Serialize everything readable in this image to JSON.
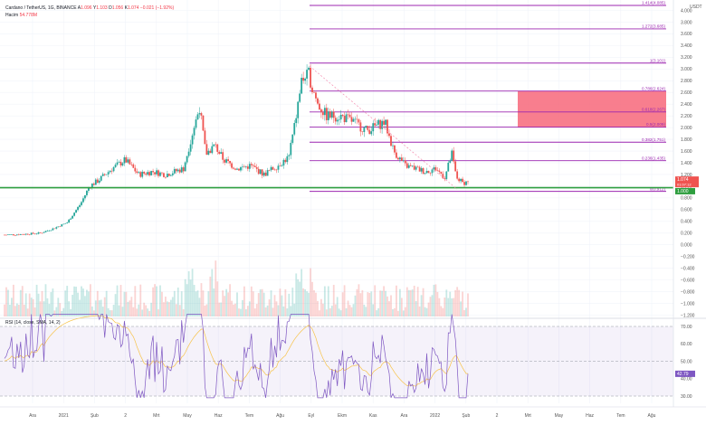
{
  "header": {
    "symbol": "Cardano / TetherUS, 1G, BINANCE",
    "ohlc": [
      {
        "k": "A",
        "v": "1.096"
      },
      {
        "k": "Y",
        "v": "1.103"
      },
      {
        "k": "D",
        "v": "1.056"
      },
      {
        "k": "K",
        "v": "1.074"
      }
    ],
    "change": "−0.021 (−1.92%)",
    "volume_label": "Hacim",
    "volume_value": "54.778M"
  },
  "rsi_legend": "RSI (14, close, SMA, 14, 2)",
  "rsi_value": "42.79",
  "corner_unit": "USDT",
  "colors": {
    "bull": "#26a69a",
    "bear": "#ef5350",
    "fib": "#9c27b0",
    "support": "#2e9e3f",
    "zone": "#f7677a",
    "rsi": "#7e57c2",
    "rsi_ma": "#f7c34a",
    "price_tag": "#ef5350",
    "support_tag": "#2e9e3f"
  },
  "chart_data": {
    "type": "candlestick",
    "price_axis": {
      "ticks": [
        "4.000",
        "3.800",
        "3.600",
        "3.400",
        "3.200",
        "3.000",
        "2.800",
        "2.600",
        "2.400",
        "2.200",
        "2.000",
        "1.800",
        "1.600",
        "1.400",
        "1.200",
        "1.000",
        "0.800",
        "0.600",
        "0.400",
        "0.200",
        "0.000",
        "−0.200",
        "−0.400",
        "−0.600",
        "−0.800",
        "−1.000",
        "−1.200"
      ],
      "last_price": "1.074",
      "last_price_extra": "01:07:12",
      "support_price": "1.000"
    },
    "time_axis": [
      "Ara",
      "2021",
      "Şub",
      "2",
      "Mrt",
      "May",
      "Haz",
      "Tem",
      "Ağu",
      "Eyl",
      "Ekm",
      "Kas",
      "Ara",
      "2022",
      "Şub",
      "2",
      "Mrt",
      "May",
      "Haz",
      "Tem",
      "Ağu"
    ],
    "fib_levels": [
      {
        "label": "1.414(4.085)",
        "price": 4.085
      },
      {
        "label": "1.272(3.685)",
        "price": 3.685
      },
      {
        "label": "1(3.101)",
        "price": 3.101
      },
      {
        "label": "0.786(2.624)",
        "price": 2.624
      },
      {
        "label": "0.618(2.267)",
        "price": 2.267
      },
      {
        "label": "0.5(2.009)",
        "price": 2.009
      },
      {
        "label": "0.382(1.751)",
        "price": 1.751
      },
      {
        "label": "0.236(1.435)",
        "price": 1.435
      },
      {
        "label": "0(0.912)",
        "price": 0.912
      }
    ],
    "rsi_axis": [
      "70.00",
      "60.00",
      "50.00",
      "40.00",
      "30.00"
    ],
    "rsi_last": 42.79,
    "anchors": [
      {
        "t": 0,
        "p": 0.17
      },
      {
        "t": 20,
        "p": 0.18
      },
      {
        "t": 40,
        "p": 0.2
      },
      {
        "t": 55,
        "p": 0.28
      },
      {
        "t": 70,
        "p": 0.38
      },
      {
        "t": 85,
        "p": 0.7
      },
      {
        "t": 95,
        "p": 1.0
      },
      {
        "t": 105,
        "p": 1.1
      },
      {
        "t": 120,
        "p": 1.3
      },
      {
        "t": 135,
        "p": 1.45
      },
      {
        "t": 150,
        "p": 1.2
      },
      {
        "t": 165,
        "p": 1.25
      },
      {
        "t": 180,
        "p": 1.2
      },
      {
        "t": 200,
        "p": 1.3
      },
      {
        "t": 210,
        "p": 1.9
      },
      {
        "t": 218,
        "p": 2.35
      },
      {
        "t": 225,
        "p": 1.55
      },
      {
        "t": 235,
        "p": 1.7
      },
      {
        "t": 245,
        "p": 1.45
      },
      {
        "t": 260,
        "p": 1.3
      },
      {
        "t": 275,
        "p": 1.35
      },
      {
        "t": 290,
        "p": 1.2
      },
      {
        "t": 305,
        "p": 1.35
      },
      {
        "t": 318,
        "p": 1.5
      },
      {
        "t": 325,
        "p": 2.1
      },
      {
        "t": 332,
        "p": 2.8
      },
      {
        "t": 340,
        "p": 2.9
      },
      {
        "t": 350,
        "p": 2.4
      },
      {
        "t": 360,
        "p": 2.2
      },
      {
        "t": 375,
        "p": 2.2
      },
      {
        "t": 390,
        "p": 2.1
      },
      {
        "t": 405,
        "p": 1.95
      },
      {
        "t": 418,
        "p": 2.05
      },
      {
        "t": 425,
        "p": 2.1
      },
      {
        "t": 435,
        "p": 1.6
      },
      {
        "t": 448,
        "p": 1.35
      },
      {
        "t": 460,
        "p": 1.3
      },
      {
        "t": 470,
        "p": 1.25
      },
      {
        "t": 482,
        "p": 1.3
      },
      {
        "t": 492,
        "p": 1.15
      },
      {
        "t": 500,
        "p": 1.55
      },
      {
        "t": 505,
        "p": 1.15
      },
      {
        "t": 512,
        "p": 1.06
      },
      {
        "t": 518,
        "p": 1.074
      }
    ]
  }
}
